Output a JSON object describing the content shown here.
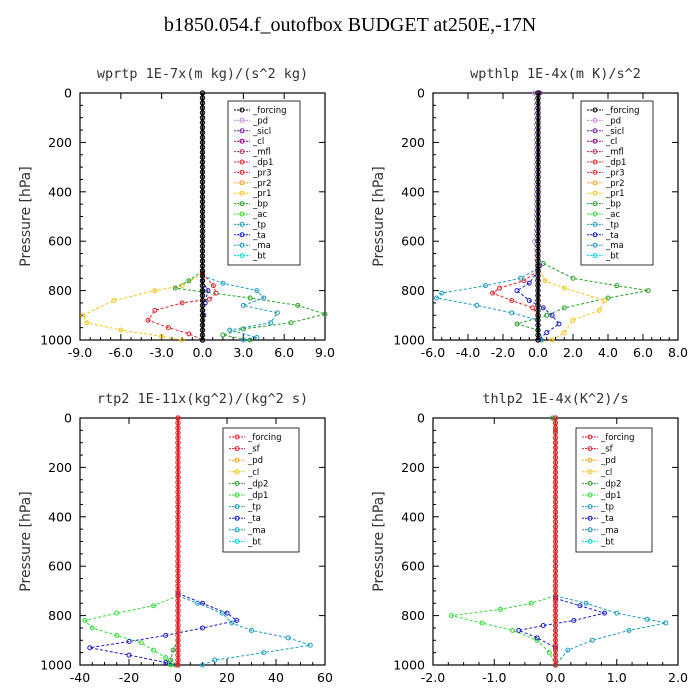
{
  "title": "b1850.054.f_outofbox  BUDGET at250E,-17N",
  "chart_data": [
    {
      "type": "line",
      "title": "wprtp  1E-7x(m kg)/(s^2 kg)",
      "ylabel": "Pressure [hPa]",
      "xlim": [
        -9,
        9
      ],
      "ylim": [
        0,
        1000
      ],
      "y_inverted": true,
      "xticks": [
        "-9.0",
        "-6.0",
        "-3.0",
        "0.0",
        "3.0",
        "6.0",
        "9.0"
      ],
      "yticks": [
        "0",
        "200",
        "400",
        "600",
        "800",
        "1000"
      ],
      "legend": [
        "_forcing",
        "_pd",
        "_sicl",
        "_cl",
        "_mfl",
        "_dp1",
        "_pr3",
        "_pr2",
        "_pr1",
        "_bp",
        "_ac",
        "_tp",
        "_ta",
        "_ma",
        "_bt"
      ],
      "series": [
        {
          "name": "_pr1",
          "color": "#f5c518",
          "points": [
            [
              0,
              730
            ],
            [
              -1.5,
              780
            ],
            [
              -3.5,
              800
            ],
            [
              -6.5,
              840
            ],
            [
              -8.8,
              900
            ],
            [
              -8.5,
              930
            ],
            [
              -6,
              960
            ],
            [
              -3,
              985
            ],
            [
              -1.5,
              1000
            ]
          ]
        },
        {
          "name": "_dp1",
          "color": "#e8222a",
          "points": [
            [
              0,
              730
            ],
            [
              0.8,
              780
            ],
            [
              1.0,
              810
            ],
            [
              0.5,
              835
            ],
            [
              -1.5,
              850
            ],
            [
              -3.5,
              880
            ],
            [
              -4.0,
              920
            ],
            [
              -2.5,
              950
            ],
            [
              -1,
              975
            ],
            [
              0,
              1000
            ]
          ]
        },
        {
          "name": "_ac",
          "color": "#2ca02c",
          "points": [
            [
              0,
              720
            ],
            [
              -1,
              760
            ],
            [
              -2,
              790
            ],
            [
              0,
              805
            ],
            [
              3.5,
              830
            ],
            [
              7,
              860
            ],
            [
              9,
              895
            ],
            [
              6.5,
              930
            ],
            [
              3,
              955
            ],
            [
              1.5,
              980
            ],
            [
              3.5,
              1000
            ]
          ]
        },
        {
          "name": "_tp",
          "color": "#1e9bc4",
          "points": [
            [
              0,
              740
            ],
            [
              1.5,
              770
            ],
            [
              4,
              800
            ],
            [
              4.5,
              830
            ],
            [
              3,
              860
            ],
            [
              5.5,
              890
            ],
            [
              5,
              930
            ],
            [
              2,
              960
            ],
            [
              4,
              990
            ],
            [
              3,
              1000
            ]
          ]
        },
        {
          "name": "_ta",
          "color": "#1c1cc8",
          "points": [
            [
              0,
              760
            ],
            [
              0.4,
              800
            ],
            [
              0.2,
              850
            ],
            [
              0.1,
              900
            ],
            [
              0,
              1000
            ]
          ]
        },
        {
          "name": "_forcing",
          "color": "#000000",
          "points": [
            [
              0,
              0
            ],
            [
              0,
              1000
            ]
          ]
        }
      ]
    },
    {
      "type": "line",
      "title": "wpthlp  1E-4x(m K)/s^2",
      "ylabel": "Pressure [hPa]",
      "xlim": [
        -6,
        8
      ],
      "ylim": [
        0,
        1000
      ],
      "y_inverted": true,
      "xticks": [
        "-6.0",
        "-4.0",
        "-2.0",
        "0.0",
        "2.0",
        "4.0",
        "6.0",
        "8.0"
      ],
      "yticks": [
        "0",
        "200",
        "400",
        "600",
        "800",
        "1000"
      ],
      "legend": [
        "_forcing",
        "_pd",
        "_sicl",
        "_cl",
        "_mfl",
        "_dp1",
        "_pr3",
        "_pr2",
        "_pr1",
        "_bp",
        "_ac",
        "_tp",
        "_ta",
        "_ma",
        "_bt"
      ],
      "series": [
        {
          "name": "_ac",
          "color": "#2ca02c",
          "points": [
            [
              0.3,
              690
            ],
            [
              2,
              750
            ],
            [
              4.5,
              780
            ],
            [
              6.3,
              800
            ],
            [
              4,
              830
            ],
            [
              1.5,
              870
            ],
            [
              0.5,
              900
            ],
            [
              -1.2,
              935
            ],
            [
              0,
              960
            ],
            [
              0.2,
              1000
            ]
          ]
        },
        {
          "name": "_pr1",
          "color": "#f5c518",
          "points": [
            [
              0,
              700
            ],
            [
              0.4,
              760
            ],
            [
              1.5,
              790
            ],
            [
              3.8,
              840
            ],
            [
              3.5,
              880
            ],
            [
              2,
              920
            ],
            [
              1.5,
              970
            ],
            [
              0.8,
              1000
            ]
          ]
        },
        {
          "name": "_dp1",
          "color": "#e8222a",
          "points": [
            [
              0,
              720
            ],
            [
              -0.8,
              760
            ],
            [
              -2.2,
              790
            ],
            [
              -2.6,
              810
            ],
            [
              -1.5,
              840
            ],
            [
              -0.3,
              870
            ],
            [
              0,
              900
            ],
            [
              0,
              1000
            ]
          ]
        },
        {
          "name": "_tp",
          "color": "#1e9bc4",
          "points": [
            [
              0,
              710
            ],
            [
              -1,
              750
            ],
            [
              -3,
              780
            ],
            [
              -5.5,
              810
            ],
            [
              -5.8,
              830
            ],
            [
              -3.5,
              860
            ],
            [
              -1.5,
              890
            ],
            [
              0,
              920
            ],
            [
              0.2,
              1000
            ]
          ]
        },
        {
          "name": "_ta",
          "color": "#1c1cc8",
          "points": [
            [
              0,
              720
            ],
            [
              -0.5,
              770
            ],
            [
              -1.2,
              800
            ],
            [
              -0.5,
              840
            ],
            [
              0.3,
              870
            ],
            [
              0.8,
              900
            ],
            [
              1.2,
              935
            ],
            [
              0.5,
              970
            ],
            [
              0,
              1000
            ]
          ]
        },
        {
          "name": "_pd",
          "color": "#c58be0",
          "points": [
            [
              -0.2,
              0
            ],
            [
              -0.2,
              600
            ],
            [
              0,
              1000
            ]
          ]
        },
        {
          "name": "_cl",
          "color": "#7b1fa2",
          "points": [
            [
              0.1,
              0
            ],
            [
              0.1,
              700
            ],
            [
              0,
              1000
            ]
          ]
        },
        {
          "name": "_forcing",
          "color": "#000000",
          "points": [
            [
              0,
              0
            ],
            [
              0,
              1000
            ]
          ]
        }
      ]
    },
    {
      "type": "line",
      "title": "rtp2  1E-11x(kg^2)/(kg^2 s)",
      "ylabel": "Pressure [hPa]",
      "xlim": [
        -40,
        60
      ],
      "ylim": [
        0,
        1000
      ],
      "y_inverted": true,
      "xticks": [
        "-40",
        "-20",
        "0",
        "20",
        "40",
        "60"
      ],
      "yticks": [
        "0",
        "200",
        "400",
        "600",
        "800",
        "1000"
      ],
      "legend": [
        "_forcing",
        "_sf",
        "_pd",
        "_cl",
        "_dp2",
        "_dp1",
        "_tp",
        "_ta",
        "_ma",
        "_bt"
      ],
      "series": [
        {
          "name": "_dp1",
          "color": "#33dd33",
          "points": [
            [
              0,
              720
            ],
            [
              -10,
              760
            ],
            [
              -25,
              790
            ],
            [
              -38,
              820
            ],
            [
              -35,
              850
            ],
            [
              -25,
              880
            ],
            [
              -15,
              910
            ],
            [
              -10,
              940
            ],
            [
              -5,
              970
            ],
            [
              -3,
              1000
            ]
          ]
        },
        {
          "name": "_dp2",
          "color": "#2ca02c",
          "points": [
            [
              0,
              900
            ],
            [
              -2,
              940
            ],
            [
              -3,
              980
            ],
            [
              -1,
              1000
            ]
          ]
        },
        {
          "name": "_ta",
          "color": "#1c1cc8",
          "points": [
            [
              0,
              710
            ],
            [
              10,
              750
            ],
            [
              20,
              790
            ],
            [
              24,
              820
            ],
            [
              10,
              850
            ],
            [
              -5,
              880
            ],
            [
              -20,
              905
            ],
            [
              -36,
              930
            ],
            [
              -20,
              960
            ],
            [
              -5,
              990
            ],
            [
              0,
              1000
            ]
          ]
        },
        {
          "name": "_tp",
          "color": "#1e9bc4",
          "points": [
            [
              0,
              720
            ],
            [
              8,
              750
            ],
            [
              18,
              790
            ],
            [
              22,
              830
            ],
            [
              30,
              860
            ],
            [
              45,
              890
            ],
            [
              54,
              920
            ],
            [
              35,
              950
            ],
            [
              15,
              980
            ],
            [
              10,
              1000
            ]
          ]
        },
        {
          "name": "_pd",
          "color": "#f5a623",
          "points": [
            [
              0,
              0
            ],
            [
              0,
              1000
            ]
          ]
        },
        {
          "name": "_forcing",
          "color": "#e8222a",
          "points": [
            [
              0,
              0
            ],
            [
              0,
              1000
            ]
          ]
        }
      ]
    },
    {
      "type": "line",
      "title": "thlp2  1E-4x(K^2)/s",
      "ylabel": "Pressure [hPa]",
      "xlim": [
        -2,
        2
      ],
      "ylim": [
        0,
        1000
      ],
      "y_inverted": true,
      "xticks": [
        "-2.0",
        "-1.0",
        "0.0",
        "1.0",
        "2.0"
      ],
      "yticks": [
        "0",
        "200",
        "400",
        "600",
        "800",
        "1000"
      ],
      "legend": [
        "_forcing",
        "_sf",
        "_pd",
        "_cl",
        "_dp2",
        "_dp1",
        "_tp",
        "_ta",
        "_ma",
        "_bt"
      ],
      "series": [
        {
          "name": "_dp1",
          "color": "#33dd33",
          "points": [
            [
              0,
              720
            ],
            [
              -0.4,
              750
            ],
            [
              -0.9,
              775
            ],
            [
              -1.7,
              800
            ],
            [
              -1.2,
              830
            ],
            [
              -0.7,
              860
            ],
            [
              -0.3,
              900
            ],
            [
              -0.1,
              950
            ],
            [
              0,
              1000
            ]
          ]
        },
        {
          "name": "_tp",
          "color": "#1e9bc4",
          "points": [
            [
              0,
              720
            ],
            [
              0.5,
              750
            ],
            [
              1.0,
              790
            ],
            [
              1.5,
              815
            ],
            [
              1.8,
              830
            ],
            [
              1.2,
              860
            ],
            [
              0.6,
              900
            ],
            [
              0.2,
              940
            ],
            [
              0,
              1000
            ]
          ]
        },
        {
          "name": "_ta",
          "color": "#1c1cc8",
          "points": [
            [
              0,
              730
            ],
            [
              0.4,
              760
            ],
            [
              0.8,
              790
            ],
            [
              0.3,
              820
            ],
            [
              -0.2,
              840
            ],
            [
              -0.6,
              860
            ],
            [
              -0.3,
              890
            ],
            [
              0,
              930
            ],
            [
              0,
              1000
            ]
          ]
        },
        {
          "name": "_dp2",
          "color": "#2ca02c",
          "points": [
            [
              -0.05,
              0
            ],
            [
              0,
              50
            ],
            [
              0,
              1000
            ]
          ]
        },
        {
          "name": "_forcing",
          "color": "#e8222a",
          "points": [
            [
              0,
              0
            ],
            [
              0,
              1000
            ]
          ]
        }
      ]
    }
  ],
  "styles": {
    "legend_colors": [
      "#000000",
      "#c58be0",
      "#7b1fa2",
      "#8b008b",
      "#b0306b",
      "#e8222a",
      "#e8222a",
      "#f5a623",
      "#f5c518",
      "#2ca02c",
      "#33dd33",
      "#1e9bc4",
      "#1c1cc8",
      "#1e9bc4",
      "#00d8d8"
    ],
    "legend_colors_small": [
      "#e8222a",
      "#e8222a",
      "#f5a623",
      "#f5c518",
      "#2ca02c",
      "#33dd33",
      "#1e9bc4",
      "#1c1cc8",
      "#1e9bc4",
      "#00d8d8"
    ]
  }
}
